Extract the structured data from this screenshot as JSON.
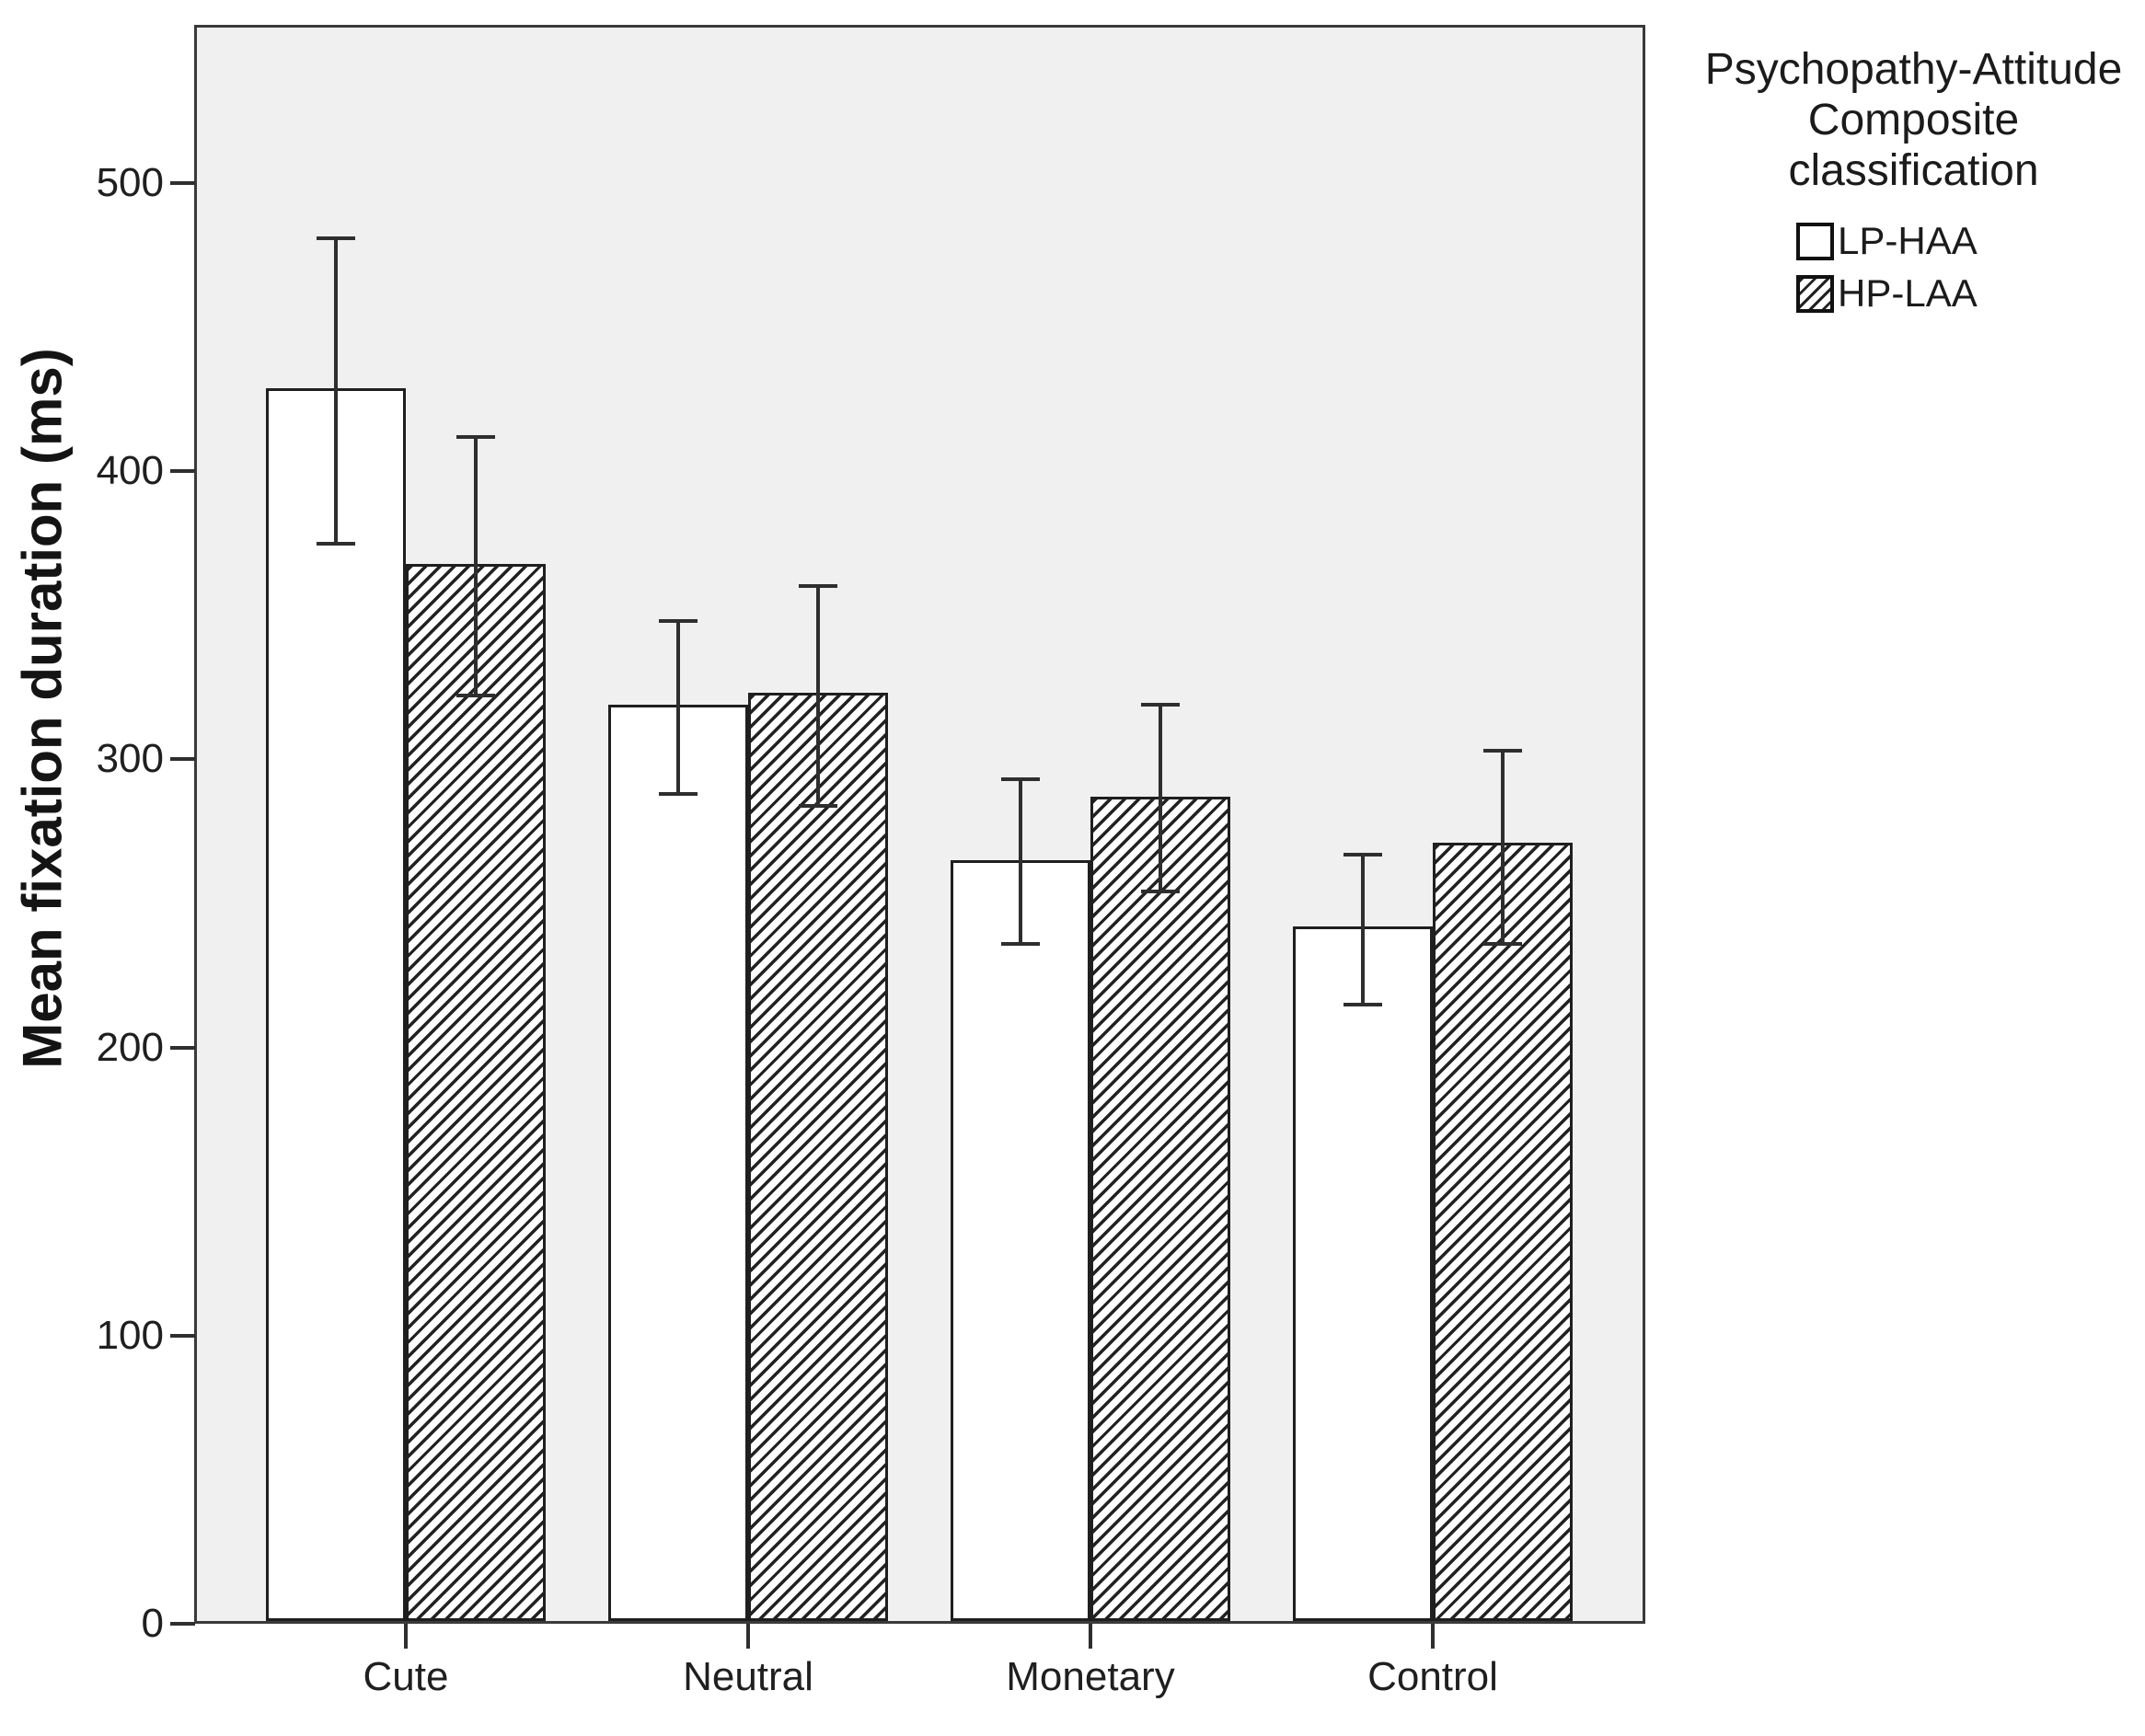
{
  "figure": {
    "background": "#ffffff",
    "plot_background": "#f0f0f0",
    "frame_color": "#3a3a3a",
    "bar_fill": "#ffffff",
    "bar_border_color": "#1f1f1f",
    "hatch_line_color": "#222222",
    "error_bar_color": "#2e2e2e",
    "text_color": "#1f1f1f"
  },
  "y_axis": {
    "label": "Mean fixation duration (ms)",
    "tick_labels": [
      "0",
      "100",
      "200",
      "300",
      "400",
      "500"
    ]
  },
  "x_axis": {
    "categories": [
      "Cute",
      "Neutral",
      "Monetary",
      "Control"
    ]
  },
  "legend": {
    "title_lines": [
      "Psychopathy-Attitude",
      "Composite",
      "classification"
    ],
    "items": [
      {
        "label": "LP-HAA",
        "pattern": "solid-white"
      },
      {
        "label": "HP-LAA",
        "pattern": "diagonal-hatch"
      }
    ]
  },
  "chart_data": {
    "type": "bar",
    "title": "",
    "categories": [
      "Cute",
      "Neutral",
      "Monetary",
      "Control"
    ],
    "series": [
      {
        "name": "LP-HAA",
        "fill": "white",
        "means": [
          428,
          318,
          264,
          241
        ],
        "error_upper": [
          481,
          348,
          293,
          267
        ],
        "error_lower": [
          375,
          288,
          236,
          215
        ]
      },
      {
        "name": "HP-LAA",
        "fill": "diagonal-hatch",
        "means": [
          367,
          322,
          286,
          270
        ],
        "error_upper": [
          412,
          360,
          319,
          303
        ],
        "error_lower": [
          322,
          284,
          254,
          236
        ]
      }
    ],
    "xlabel": "",
    "ylabel": "Mean fixation duration (ms)",
    "yticks": [
      0,
      100,
      200,
      300,
      400,
      500
    ],
    "ylim": [
      0,
      555
    ],
    "grid": false,
    "legend_title": "Psychopathy-Attitude Composite classification",
    "legend_position": "outside-top-right",
    "error_bars": "symmetric caps, drawn over bars"
  }
}
